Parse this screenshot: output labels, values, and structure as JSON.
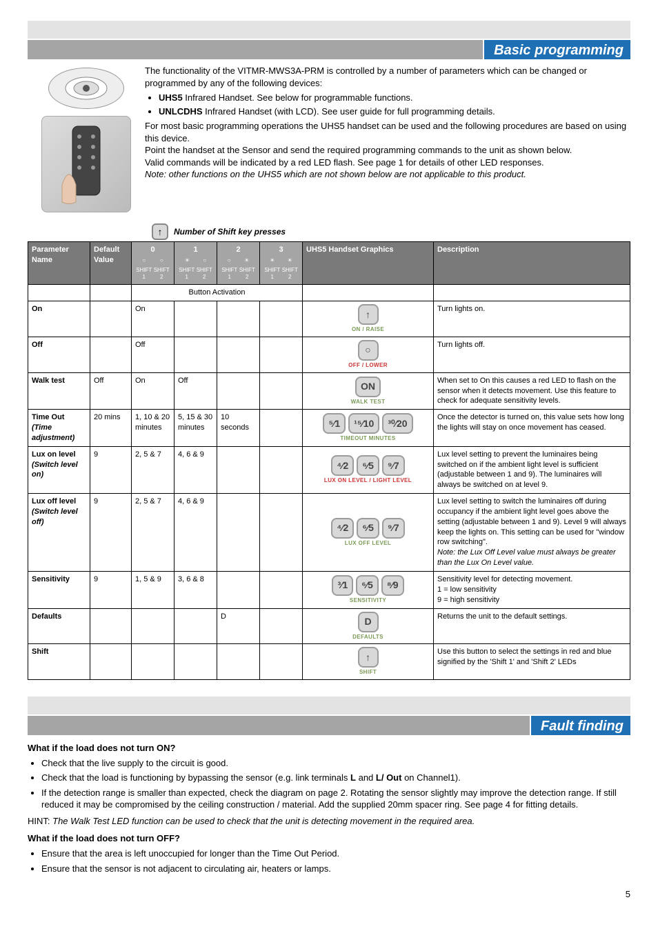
{
  "page_number": "5",
  "section_programming_title": "Basic programming",
  "section_fault_title": "Fault finding",
  "intro": {
    "p1_prefix": "The functionality of the ",
    "product_name": "VITMR-MWS3A-PRM",
    "p1_suffix": " is controlled by a number of parameters which can be changed or programmed by any of the following devices:",
    "bullet1_bold": "UHS5",
    "bullet1_rest": " Infrared Handset. See below for programmable functions.",
    "bullet2_bold": "UNLCDHS",
    "bullet2_rest": " Infrared Handset (with LCD). See user guide for full programming details.",
    "p2": "For most basic programming operations the UHS5 handset can be used and the following procedures are based on using this device.",
    "p3": "Point the handset at the Sensor and send the required programming commands to the unit as shown below.",
    "p4": "Valid commands will be indicated by a red LED flash. See page 1 for details of other LED responses.",
    "note": "Note: other functions on the UHS5 which are not shown below are not applicable to this product."
  },
  "shift_caption": "Number of Shift key presses",
  "table_headers": {
    "param": "Parameter Name",
    "default": "Default Value",
    "col0": "0",
    "col1": "1",
    "col2": "2",
    "col3": "3",
    "graphics": "UHS5 Handset Graphics",
    "desc": "Description",
    "sh1": "SHIFT 1",
    "sh2": "SHIFT 2"
  },
  "button_activation_label": "Button Activation",
  "rows": [
    {
      "name": "On",
      "default": "",
      "c0": "On",
      "c1": "",
      "c2": "",
      "c3": "",
      "glyph": "↑",
      "glabel": "ON / RAISE",
      "glabel_class": "",
      "desc": "Turn lights on."
    },
    {
      "name": "Off",
      "default": "",
      "c0": "Off",
      "c1": "",
      "c2": "",
      "c3": "",
      "glyph": "○",
      "glabel": "OFF / LOWER",
      "glabel_class": "red",
      "desc": "Turn lights off."
    },
    {
      "name": "Walk test",
      "default": "Off",
      "c0": "On",
      "c1": "Off",
      "c2": "",
      "c3": "",
      "glyph": "ON",
      "glabel": "WALK TEST",
      "glabel_class": "",
      "desc": "When set to On this causes a red LED to flash on the sensor when it detects movement. Use this feature to check for adequate sensitivity levels."
    },
    {
      "name": "Time Out (Time adjustment)",
      "default": "20 mins",
      "c0": "1, 10 & 20 minutes",
      "c1": "5, 15 & 30 minutes",
      "c2": "10 seconds",
      "c3": "",
      "glyphs": [
        "⁵⁄1",
        "¹⁵⁄10",
        "³⁰⁄20"
      ],
      "glabel": "TIMEOUT MINUTES",
      "glabel_class": "",
      "desc": "Once the detector is turned on, this value sets how long the lights will stay on once movement has ceased."
    },
    {
      "name": "Lux on level (Switch level on)",
      "default": "9",
      "c0": "2, 5 & 7",
      "c1": "4, 6 & 9",
      "c2": "",
      "c3": "",
      "glyphs": [
        "⁴⁄2",
        "⁶⁄5",
        "⁹⁄7"
      ],
      "glabel": "LUX ON LEVEL / LIGHT LEVEL",
      "glabel_class": "red",
      "desc": "Lux level setting to prevent the luminaires being switched on if the ambient light level is sufficient (adjustable between 1 and 9). The luminaires will always be switched on at level 9."
    },
    {
      "name": "Lux off level (Switch level off)",
      "default": "9",
      "c0": "2, 5 & 7",
      "c1": "4, 6 & 9",
      "c2": "",
      "c3": "",
      "glyphs": [
        "⁴⁄2",
        "⁶⁄5",
        "⁹⁄7"
      ],
      "glabel": "LUX OFF LEVEL",
      "glabel_class": "",
      "desc": "Lux level setting to switch the luminaires off during occupancy if the ambient light level goes above the setting (adjustable between 1 and 9). Level 9 will always keep the lights on. This setting can be used for \"window row switching\".\nNote: the Lux Off Level value must always be greater than the Lux On Level value."
    },
    {
      "name": "Sensitivity",
      "default": "9",
      "c0": "1, 5 & 9",
      "c1": "3, 6 & 8",
      "c2": "",
      "c3": "",
      "glyphs": [
        "³⁄1",
        "⁶⁄5",
        "⁸⁄9"
      ],
      "glabel": "SENSITIVITY",
      "glabel_class": "",
      "desc": "Sensitivity level for detecting movement.\n1 = low sensitivity\n9 = high sensitivity"
    },
    {
      "name": "Defaults",
      "default": "",
      "c0": "",
      "c1": "",
      "c2": "D",
      "c3": "",
      "glyph": "D",
      "glabel": "DEFAULTS",
      "glabel_class": "",
      "desc": "Returns the unit to the default settings."
    },
    {
      "name": "Shift",
      "default": "",
      "c0": "",
      "c1": "",
      "c2": "",
      "c3": "",
      "glyph": "↑",
      "glabel": "SHIFT",
      "glabel_class": "",
      "desc": "Use this button to select the settings in red and blue signified by the 'Shift 1' and 'Shift 2' LEDs"
    }
  ],
  "fault": {
    "h1": "What if the load does not turn ON?",
    "on_bullets": [
      "Check that the live supply to the circuit is good.",
      "Check that the load is functioning by bypassing the sensor (e.g. link terminals L and L/ Out on Channel1).",
      "If the detection range is smaller than expected, check the diagram on page 2. Rotating the sensor slightly may improve the detection range. If still reduced it may be compromised by the ceiling construction / material. Add the supplied 20mm spacer ring. See page 4 for fitting details."
    ],
    "hint_prefix": "HINT: ",
    "hint_italic": "The Walk Test LED function can be used to check that the unit is detecting movement in the required area.",
    "h2": "What if the load does not turn OFF?",
    "off_bullets": [
      "Ensure that the area is left unoccupied for longer than the Time Out Period.",
      "Ensure that the sensor is not adjacent to circulating air, heaters or lamps."
    ]
  },
  "col_widths": {
    "param": "90px",
    "default": "60px",
    "shift": "62px",
    "graphics": "190px",
    "desc": "auto"
  }
}
